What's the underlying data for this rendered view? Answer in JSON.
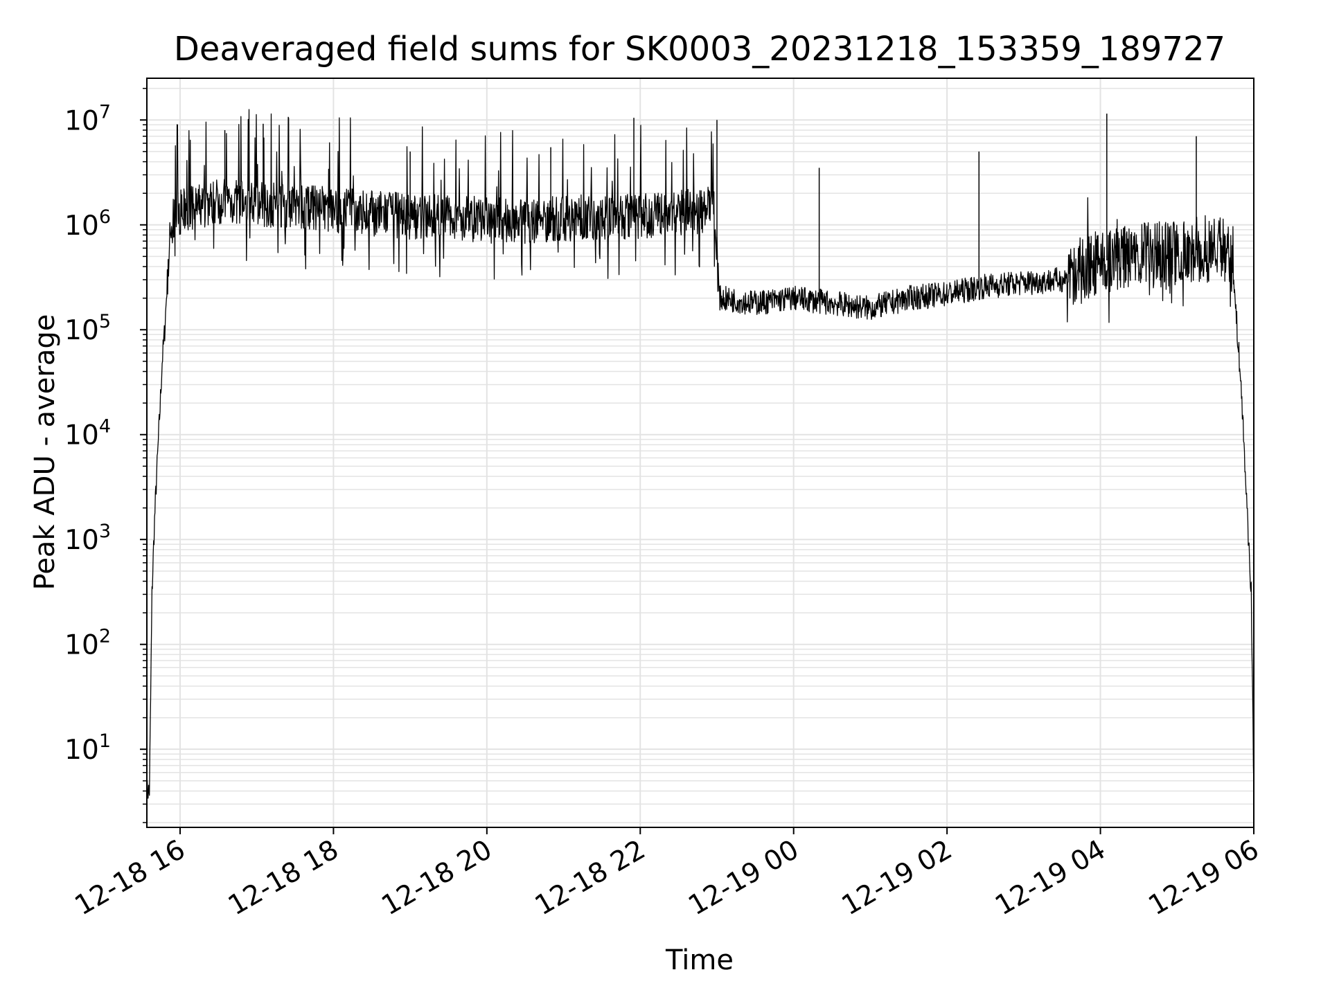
{
  "chart_data": {
    "type": "line",
    "title": "Deaveraged field sums for SK0003_20231218_153359_189727",
    "xlabel": "Time",
    "ylabel": "Peak ADU - average",
    "yscale": "log",
    "ylim": [
      1.8,
      25000000
    ],
    "xlim": [
      "2023-12-18 15:34",
      "2023-12-19 06:00"
    ],
    "grid": true,
    "colors": {
      "line": "#000000",
      "grid": "#e3e3e3",
      "axes": "#000000",
      "background": "#ffffff"
    },
    "x_ticks": [
      {
        "label": "12-18 16",
        "time": "2023-12-18 16:00"
      },
      {
        "label": "12-18 18",
        "time": "2023-12-18 18:00"
      },
      {
        "label": "12-18 20",
        "time": "2023-12-18 20:00"
      },
      {
        "label": "12-18 22",
        "time": "2023-12-18 22:00"
      },
      {
        "label": "12-19 00",
        "time": "2023-12-19 00:00"
      },
      {
        "label": "12-19 02",
        "time": "2023-12-19 02:00"
      },
      {
        "label": "12-19 04",
        "time": "2023-12-19 04:00"
      },
      {
        "label": "12-19 06",
        "time": "2023-12-19 06:00"
      }
    ],
    "y_ticks": [
      {
        "base": "10",
        "exp": "1",
        "value": 10
      },
      {
        "base": "10",
        "exp": "2",
        "value": 100
      },
      {
        "base": "10",
        "exp": "3",
        "value": 1000
      },
      {
        "base": "10",
        "exp": "4",
        "value": 10000
      },
      {
        "base": "10",
        "exp": "5",
        "value": 100000
      },
      {
        "base": "10",
        "exp": "6",
        "value": 1000000
      },
      {
        "base": "10",
        "exp": "7",
        "value": 10000000
      }
    ],
    "series": [
      {
        "x": [
          "2023-12-18 15:34",
          "2023-12-18 15:36",
          "2023-12-18 15:37",
          "2023-12-18 15:38",
          "2023-12-18 15:40",
          "2023-12-18 15:42",
          "2023-12-18 15:44",
          "2023-12-18 15:46",
          "2023-12-18 15:48",
          "2023-12-18 15:50",
          "2023-12-18 15:52",
          "2023-12-18 15:54",
          "2023-12-18 15:56",
          "2023-12-18 15:58",
          "2023-12-18 16:00",
          "2023-12-18 16:30",
          "2023-12-18 17:00",
          "2023-12-18 17:30",
          "2023-12-18 18:00",
          "2023-12-18 18:30",
          "2023-12-18 19:00",
          "2023-12-18 19:30",
          "2023-12-18 20:00",
          "2023-12-18 20:30",
          "2023-12-18 21:00",
          "2023-12-18 21:30",
          "2023-12-18 22:00",
          "2023-12-18 22:30",
          "2023-12-18 22:58",
          "2023-12-18 23:02",
          "2023-12-18 23:30",
          "2023-12-19 00:00",
          "2023-12-19 00:30",
          "2023-12-19 01:00",
          "2023-12-19 01:30",
          "2023-12-19 02:00",
          "2023-12-19 02:30",
          "2023-12-19 03:00",
          "2023-12-19 03:30",
          "2023-12-19 04:00",
          "2023-12-19 04:30",
          "2023-12-19 05:00",
          "2023-12-19 05:30",
          "2023-12-19 05:42",
          "2023-12-19 05:46",
          "2023-12-19 05:50",
          "2023-12-19 05:54",
          "2023-12-19 05:58",
          "2023-12-19 06:00"
        ],
        "y": [
          4,
          4,
          30,
          300,
          1500,
          5000,
          15000,
          50000,
          100000,
          300000,
          700000,
          1000000,
          1200000,
          1300000,
          1300000,
          1700000,
          1600000,
          1500000,
          1400000,
          1300000,
          1200000,
          1200000,
          1100000,
          1100000,
          1150000,
          1200000,
          1200000,
          1300000,
          1400000,
          200000,
          180000,
          200000,
          180000,
          160000,
          200000,
          220000,
          260000,
          280000,
          300000,
          450000,
          500000,
          550000,
          600000,
          600000,
          150000,
          30000,
          3000,
          300,
          4
        ],
        "spikes": [
          {
            "time": "2023-12-18 16:35",
            "value": 8000000
          },
          {
            "time": "2023-12-18 17:05",
            "value": 9200000
          },
          {
            "time": "2023-12-18 19:00",
            "value": 5000000
          },
          {
            "time": "2023-12-18 20:50",
            "value": 5500000
          },
          {
            "time": "2023-12-18 21:55",
            "value": 10500000
          },
          {
            "time": "2023-12-18 23:00",
            "value": 10000000
          },
          {
            "time": "2023-12-19 00:20",
            "value": 3500000
          },
          {
            "time": "2023-12-19 02:25",
            "value": 5000000
          },
          {
            "time": "2023-12-19 04:05",
            "value": 11500000
          },
          {
            "time": "2023-12-19 05:15",
            "value": 7000000
          }
        ]
      }
    ]
  }
}
